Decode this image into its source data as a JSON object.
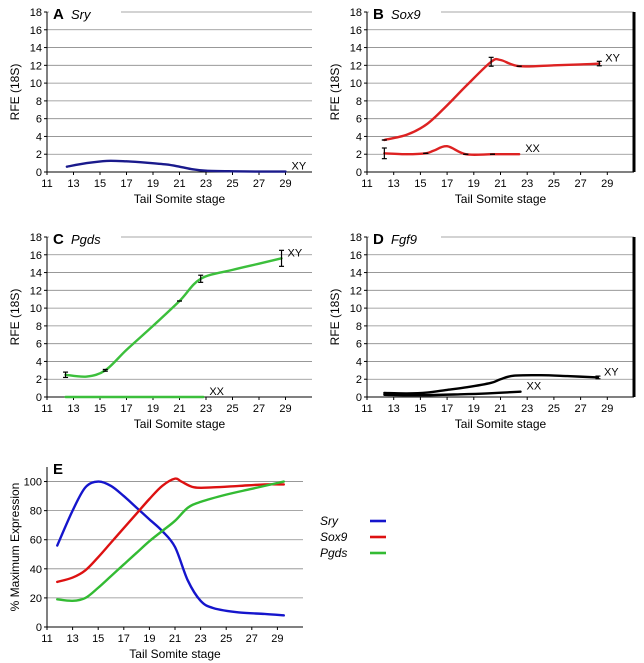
{
  "chart_data": [
    {
      "type": "line",
      "panel_label": "A",
      "gene": "Sry",
      "xlabel": "Tail Somite stage",
      "ylabel": "RFE (18S)",
      "xlim": [
        11,
        31
      ],
      "ylim": [
        0,
        18
      ],
      "xticks": [
        11,
        13,
        15,
        17,
        19,
        21,
        23,
        25,
        27,
        29
      ],
      "yticks": [
        0,
        2,
        4,
        6,
        8,
        10,
        12,
        14,
        16,
        18
      ],
      "grid": true,
      "color": "#1a1a8c",
      "series": [
        {
          "name": "XY",
          "x": [
            12.5,
            14,
            15.5,
            17,
            18.5,
            20,
            21,
            22,
            23,
            25,
            27,
            29
          ],
          "y": [
            0.6,
            1.0,
            1.25,
            1.2,
            1.05,
            0.85,
            0.6,
            0.3,
            0.15,
            0.08,
            0.05,
            0.05
          ]
        }
      ]
    },
    {
      "type": "line",
      "panel_label": "B",
      "gene": "Sox9",
      "xlabel": "Tail Somite stage",
      "ylabel": "RFE (18S)",
      "xlim": [
        11,
        31
      ],
      "ylim": [
        0,
        18
      ],
      "xticks": [
        11,
        13,
        15,
        17,
        19,
        21,
        23,
        25,
        27,
        29
      ],
      "yticks": [
        0,
        2,
        4,
        6,
        8,
        10,
        12,
        14,
        16,
        18
      ],
      "grid": true,
      "color": "#dd2222",
      "series": [
        {
          "name": "XY",
          "x": [
            12.3,
            14,
            15.5,
            17,
            18.5,
            20.3,
            21,
            22.4,
            25,
            27,
            28.4
          ],
          "y": [
            3.6,
            4.2,
            5.4,
            7.5,
            9.8,
            12.4,
            12.6,
            11.9,
            12.0,
            12.1,
            12.2
          ]
        },
        {
          "name": "XX",
          "x": [
            12.3,
            14,
            15.4,
            16,
            17,
            18.4,
            20.4,
            22.4
          ],
          "y": [
            2.1,
            2.0,
            2.1,
            2.4,
            2.9,
            2.0,
            2.0,
            2.0
          ]
        }
      ]
    },
    {
      "type": "line",
      "panel_label": "C",
      "gene": "Pgds",
      "xlabel": "Tail Somite stage",
      "ylabel": "RFE (18S)",
      "xlim": [
        11,
        31
      ],
      "ylim": [
        0,
        18
      ],
      "xticks": [
        11,
        13,
        15,
        17,
        19,
        21,
        23,
        25,
        27,
        29
      ],
      "yticks": [
        0,
        2,
        4,
        6,
        8,
        10,
        12,
        14,
        16,
        18
      ],
      "grid": true,
      "color": "#3cbf3c",
      "series": [
        {
          "name": "XY",
          "x": [
            12.4,
            14,
            15.4,
            17,
            19,
            21,
            22.6,
            25,
            27,
            28.7
          ],
          "y": [
            2.5,
            2.3,
            3.0,
            5.3,
            8.0,
            10.8,
            13.3,
            14.3,
            15.0,
            15.6
          ]
        },
        {
          "name": "XX",
          "x": [
            12.4,
            15,
            17,
            19,
            21,
            22.8
          ],
          "y": [
            0,
            0,
            0,
            0,
            0,
            0
          ]
        }
      ]
    },
    {
      "type": "line",
      "panel_label": "D",
      "gene": "Fgf9",
      "xlabel": "Tail Somite stage",
      "ylabel": "RFE (18S)",
      "xlim": [
        11,
        31
      ],
      "ylim": [
        0,
        18
      ],
      "xticks": [
        11,
        13,
        15,
        17,
        19,
        21,
        23,
        25,
        27,
        29
      ],
      "yticks": [
        0,
        2,
        4,
        6,
        8,
        10,
        12,
        14,
        16,
        18
      ],
      "grid": true,
      "color": "#000000",
      "series": [
        {
          "name": "XY",
          "x": [
            12.3,
            14,
            15.5,
            17,
            18.5,
            20.3,
            21,
            22,
            24,
            26,
            28.3
          ],
          "y": [
            0.45,
            0.4,
            0.5,
            0.8,
            1.1,
            1.6,
            2.0,
            2.4,
            2.45,
            2.35,
            2.2
          ]
        },
        {
          "name": "XX",
          "x": [
            12.3,
            15,
            18,
            20,
            22.5
          ],
          "y": [
            0.25,
            0.2,
            0.3,
            0.4,
            0.6
          ]
        }
      ]
    },
    {
      "type": "line",
      "panel_label": "E",
      "xlabel": "Tail Somite stage",
      "ylabel": "% Maximum Expression",
      "xlim": [
        11,
        31
      ],
      "ylim": [
        0,
        110
      ],
      "xticks": [
        11,
        13,
        15,
        17,
        19,
        21,
        23,
        25,
        27,
        29
      ],
      "yticks": [
        0,
        20,
        40,
        60,
        80,
        100
      ],
      "grid": true,
      "legend": "right",
      "series": [
        {
          "name": "Sry",
          "color": "#1515cc",
          "x": [
            11.8,
            13,
            14,
            15,
            16,
            17,
            18,
            19,
            20,
            21,
            22,
            23,
            24,
            26,
            28,
            29.5
          ],
          "y": [
            56,
            80,
            96,
            100,
            97,
            90,
            82,
            74,
            66,
            55,
            32,
            18,
            13,
            10,
            9,
            8
          ]
        },
        {
          "name": "Sox9",
          "color": "#dd1111",
          "x": [
            11.8,
            13,
            14,
            15,
            16,
            17,
            18,
            19,
            20,
            21,
            21.5,
            22.5,
            24,
            26,
            28,
            29.5
          ],
          "y": [
            31,
            34,
            39,
            48,
            58,
            68,
            78,
            88,
            97,
            102,
            100,
            96,
            96,
            97,
            98,
            98
          ]
        },
        {
          "name": "Pgds",
          "color": "#33bb33",
          "x": [
            11.8,
            13,
            14,
            15,
            16,
            17,
            18,
            19,
            20,
            21,
            22,
            23,
            25,
            27,
            29.5
          ],
          "y": [
            19,
            18,
            20,
            27,
            35,
            43,
            51,
            59,
            66,
            73,
            82,
            86,
            91,
            95,
            100
          ]
        }
      ]
    }
  ]
}
